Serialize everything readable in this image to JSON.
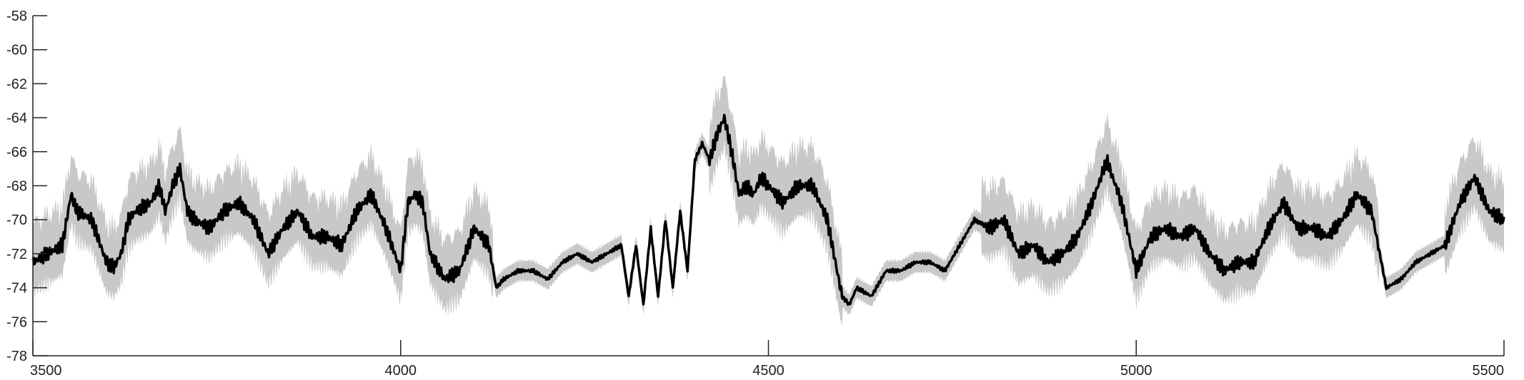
{
  "chart_data": {
    "type": "line",
    "title": "",
    "xlabel": "",
    "ylabel": "",
    "xlim": [
      3500,
      5500
    ],
    "ylim": [
      -78,
      -58
    ],
    "xticks": [
      3500,
      4000,
      4500,
      5000,
      5500
    ],
    "xtick_labels": [
      "3500",
      "4000",
      "4500",
      "5000",
      "5500"
    ],
    "yticks": [
      -78,
      -76,
      -74,
      -72,
      -70,
      -68,
      -66,
      -64,
      -62,
      -60,
      -58
    ],
    "ytick_labels": [
      "-78",
      "-76",
      "-74",
      "-72",
      "-70",
      "-68",
      "-66",
      "-64",
      "-62",
      "-60",
      "-58"
    ],
    "grid": false,
    "legend": "none",
    "colors": {
      "mean": "#000000",
      "band": "#c8c8c8",
      "axis": "#222222"
    },
    "series": [
      {
        "role": "mean-trace",
        "x": [
          3500,
          3520,
          3540,
          3552,
          3560,
          3580,
          3600,
          3610,
          3620,
          3630,
          3640,
          3660,
          3672,
          3680,
          3690,
          3700,
          3710,
          3720,
          3740,
          3760,
          3780,
          3800,
          3820,
          3840,
          3860,
          3880,
          3900,
          3920,
          3940,
          3960,
          3980,
          4000,
          4010,
          4020,
          4030,
          4040,
          4060,
          4080,
          4100,
          4120,
          4130,
          4140,
          4160,
          4180,
          4200,
          4220,
          4240,
          4260,
          4280,
          4300,
          4310,
          4320,
          4330,
          4340,
          4350,
          4360,
          4370,
          4380,
          4390,
          4400,
          4410,
          4420,
          4430,
          4440,
          4450,
          4460,
          4470,
          4480,
          4490,
          4500,
          4520,
          4540,
          4560,
          4580,
          4600,
          4610,
          4620,
          4640,
          4660,
          4680,
          4700,
          4720,
          4740,
          4760,
          4780,
          4800,
          4820,
          4840,
          4860,
          4880,
          4900,
          4920,
          4940,
          4960,
          4980,
          5000,
          5020,
          5040,
          5060,
          5080,
          5100,
          5120,
          5140,
          5160,
          5180,
          5200,
          5220,
          5240,
          5260,
          5280,
          5300,
          5320,
          5340,
          5360,
          5380,
          5400,
          5420,
          5440,
          5460,
          5480,
          5500
        ],
        "y": [
          -72.5,
          -72.0,
          -71.5,
          -68.5,
          -69.5,
          -70.0,
          -72.5,
          -72.8,
          -72.0,
          -70.0,
          -69.5,
          -69.0,
          -68.0,
          -69.5,
          -68.0,
          -67.0,
          -69.5,
          -70.0,
          -70.5,
          -69.5,
          -69.0,
          -70.0,
          -72.0,
          -70.5,
          -69.5,
          -71.0,
          -71.0,
          -71.5,
          -69.5,
          -68.5,
          -70.5,
          -73.0,
          -69.0,
          -68.5,
          -69.0,
          -72.0,
          -73.5,
          -73.0,
          -70.5,
          -71.5,
          -74.0,
          -73.5,
          -73.0,
          -73.0,
          -73.5,
          -72.5,
          -72.0,
          -72.5,
          -72.0,
          -71.5,
          -74.5,
          -71.5,
          -75.0,
          -70.5,
          -74.5,
          -70.0,
          -74.0,
          -69.5,
          -73.0,
          -66.5,
          -65.5,
          -66.5,
          -65.0,
          -64.0,
          -66.0,
          -68.5,
          -68.0,
          -68.5,
          -67.5,
          -68.0,
          -69.0,
          -68.0,
          -68.0,
          -70.0,
          -74.5,
          -75.0,
          -74.0,
          -74.5,
          -73.0,
          -73.0,
          -72.5,
          -72.5,
          -73.0,
          -71.5,
          -70.0,
          -70.5,
          -70.0,
          -72.0,
          -71.5,
          -72.5,
          -72.0,
          -71.0,
          -69.0,
          -66.5,
          -69.0,
          -73.0,
          -71.0,
          -70.5,
          -71.0,
          -70.5,
          -72.0,
          -73.0,
          -72.5,
          -72.5,
          -70.5,
          -69.0,
          -70.5,
          -70.5,
          -71.0,
          -70.0,
          -68.5,
          -69.5,
          -74.0,
          -73.5,
          -72.5,
          -72.0,
          -71.5,
          -69.0,
          -67.5,
          -69.5,
          -70.0
        ]
      }
    ]
  }
}
